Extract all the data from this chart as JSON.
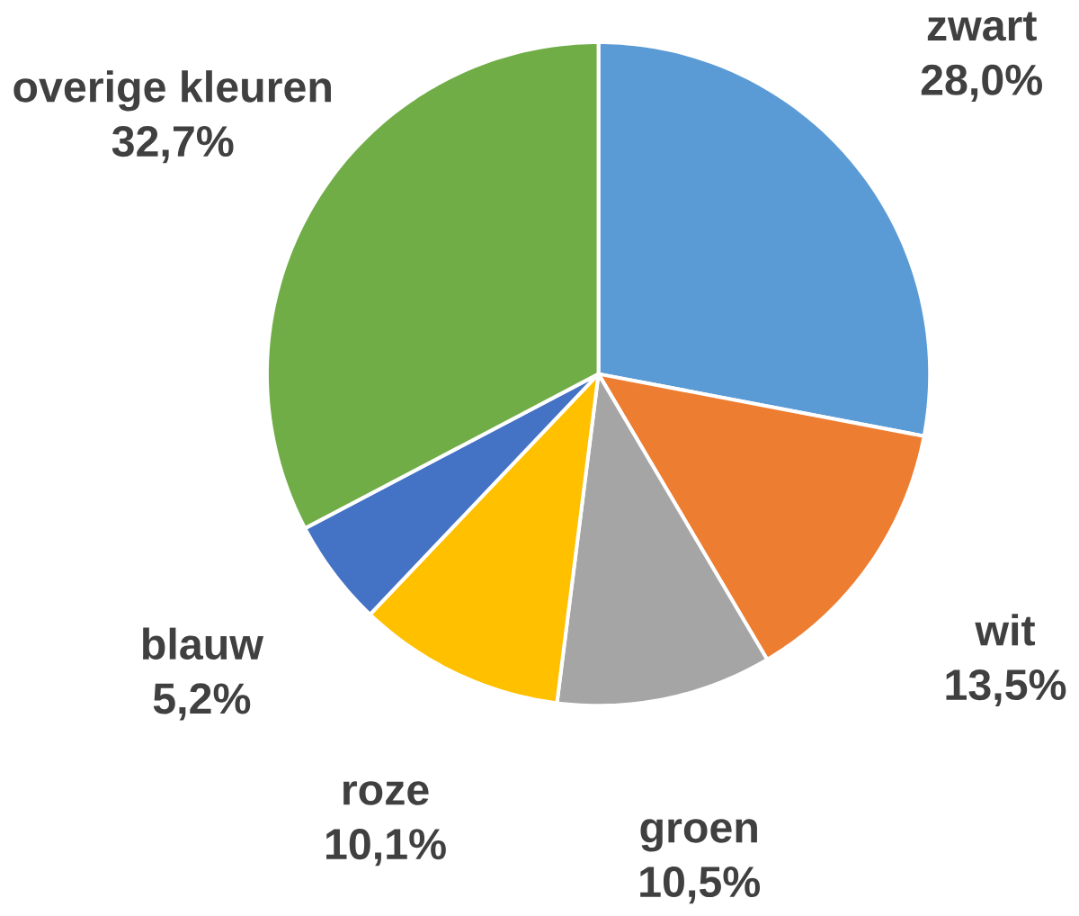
{
  "chart_data": {
    "type": "pie",
    "categories": [
      "zwart",
      "wit",
      "groen",
      "roze",
      "blauw",
      "overige kleuren"
    ],
    "values": [
      28.0,
      13.5,
      10.5,
      10.1,
      5.2,
      32.7
    ],
    "value_labels": [
      "28,0%",
      "13,5%",
      "10,5%",
      "10,1%",
      "5,2%",
      "32,7%"
    ],
    "colors": [
      "#5b9bd5",
      "#ed7d31",
      "#a5a5a5",
      "#ffc000",
      "#4472c4",
      "#70ad47"
    ]
  }
}
